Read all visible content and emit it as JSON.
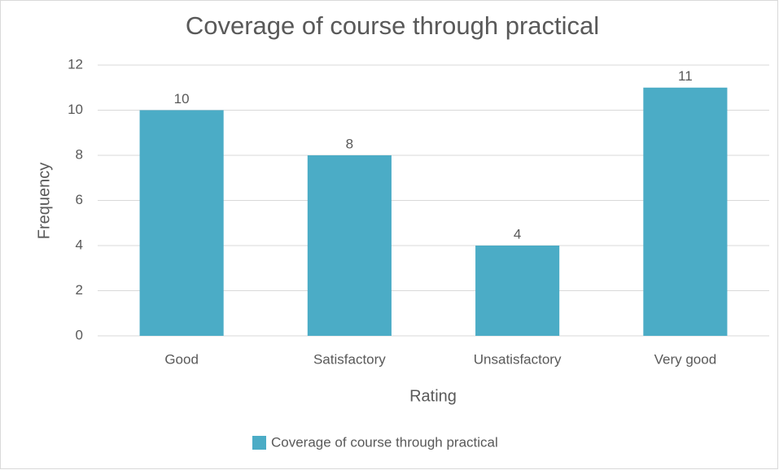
{
  "chart_data": {
    "type": "bar",
    "title": "Coverage of course through practical",
    "x_label": "Rating",
    "y_label": "Frequency",
    "categories": [
      "Good",
      "Satisfactory",
      "Unsatisfactory",
      "Very good"
    ],
    "series": [
      {
        "name": "Coverage of course through practical",
        "color": "#4bacc6",
        "values": [
          10,
          8,
          4,
          11
        ]
      }
    ],
    "ylim": [
      0,
      12
    ],
    "yticks": [
      0,
      2,
      4,
      6,
      8,
      10,
      12
    ],
    "grid": true,
    "legend": "bottom"
  }
}
